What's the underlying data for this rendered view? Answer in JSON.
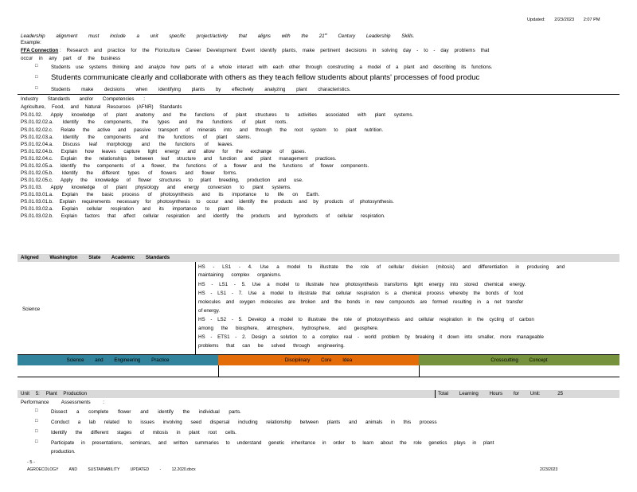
{
  "header": {
    "updated_label": "Updated:",
    "updated_date": "2/23/2023",
    "updated_time": "2:07 PM"
  },
  "intro": {
    "leadership_line": "Leadership alignment must include a unit specific project/activity that aligns with the 21st Century Leadership Skills.",
    "leadership_parts": [
      "Leadership",
      "alignment",
      "must",
      "include",
      "a unit",
      "specific",
      "project/activity",
      "that",
      "aligns",
      "with",
      "the",
      "21",
      "st",
      "Century",
      "Leadership",
      "Skills."
    ],
    "example_label": "Example:",
    "ffa_label": "FFA Connection",
    "ffa_text": ": Research and practice for the Floriculture Career Development Event identify plants, make pertinent decisions in solving day - to - day problems that",
    "ffa_cont": "occur in any part of the business",
    "bullets": [
      "Students use systems thinking and analyze how parts of a whole interact with each other through constructing a model of a plant and describing its functions.",
      "Students communicate clearly and collaborate with others as they teach fellow students about plants' processes of food produc",
      "Students make decisions when identifying plants by effectively analyzing plant characteristics."
    ]
  },
  "standards": {
    "heading_1": "Industry Standards and/or Competencies :",
    "heading_2": "Agriculture, Food, and Natural Resources (AFNR) Standards",
    "items": [
      "PS.01.02. Apply knowledge of plant anatomy and the functions of plant structures to activities associated with plant systems.",
      "PS.01.02.02.a. Identify the components, the types and the functions of plant roots.",
      "PS.01.02.02.c. Relate the active and passive transport of minerals into and through the root system to plant nutrition.",
      "PS.01.02.03.a. Identify the components and the functions of plant stems.",
      "PS.01.02.04.a. Discuss leaf morphology and the functions of leaves.",
      "PS.01.02.04.b. Explain how leaves capture light energy and allow for the exchange of gases.",
      "PS.01.02.04.c. Explain the relationships between leaf structure and function and plant management practices.",
      "PS.01.02.05.a. Identify the components of a flower, the functions of a flower and the functions of flower components.",
      "PS.01.02.05.b. Identify the different types of flowers and flower forms.",
      "PS.01.02.05.c. Apply the knowledge of flower structures to plant breeding, production and use.",
      "PS.01.03. Apply knowledge of plant physiology and energy conversion to plant systems.",
      "PS.01.03.01.a. Explain the basic process of photosynthesis and its importance to life on Earth.",
      "PS.01.03.01.b. Explain requirements necessary for photosynthesis to occur and identify the products and by products of photosynthesis.",
      "PS.01.03.02.a. Explain cellular respiration and its importance to plant life.",
      "PS.01.03.02.b. Explain factors that affect cellular respiration and identify the products and byproducts of cellular respiration."
    ]
  },
  "washington": {
    "band_label": "Aligned Washington State Academic Standards",
    "science_label": "Science",
    "hs_lines": [
      "HS - LS1 - 4. Use a model to illustrate the role of cellular division (mitosis) and differentiation in producing and",
      "maintaining complex organisms.",
      "HS - LS1 - 5. Use a model to illustrate how photosynthesis transforms light energy into stored chemical energy.",
      "HS - LS1 - 7. Use a model to illustrate that cellular respiration is a chemical process whereby the bonds of food",
      "molecules and oxygen molecules are broken and the bonds in new compounds are formed resulting in a net transfer",
      "of energy.",
      "HS - LS2 - 5. Develop a model to illustrate the role of photosynthesis and cellular respiration in the cycling of carbon",
      "among the biosphere, atmosphere, hydrosphere, and geosphere.",
      "HS - ETS1 - 2. Design a solution to a complex real - world problem by breaking it down into smaller, more manageable",
      "problems that can be solved through engineering."
    ],
    "dims": {
      "practice": "Science and Engineering Practice",
      "core_idea": "Disciplinary Core Idea",
      "crosscutting": "Crosscutting Concept"
    },
    "colors": {
      "practice": "#31849b",
      "core_idea": "#e36c09",
      "crosscutting": "#76923c",
      "band": "#d9d9d9"
    }
  },
  "unit": {
    "title": "Unit 5: Plant Production",
    "total_label": "Total Learning Hours for Unit:",
    "total_hours": "25"
  },
  "performance": {
    "heading": "Performance Assessments :",
    "bullets": [
      "Dissect a complete flower and identify the individual parts.",
      "Conduct a lab related to issues involving seed dispersal including relationship between plants and animals in this process",
      "Identify the different stages of mitosis in plant root cells.",
      "Participate in presentations, seminars, and written summaries to understand genetic inheritance in order to learn about the role genetics plays in plant",
      "production."
    ]
  },
  "footer": {
    "page_number": "- 5 -",
    "doc_name": "AGROECOLOGY AND SUSTAINABILITY UPDATED - 12.2020.docx",
    "date": "2/23/2023"
  }
}
